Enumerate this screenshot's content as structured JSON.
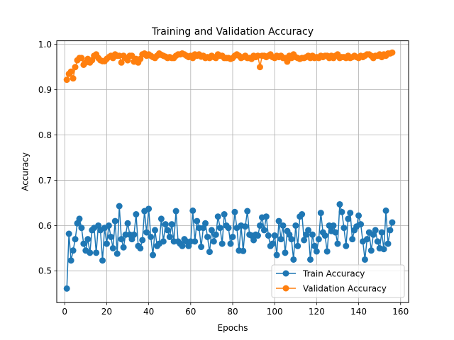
{
  "chart_data": {
    "type": "line",
    "title": "Training and Validation Accuracy",
    "xlabel": "Epochs",
    "ylabel": "Accuracy",
    "xlim": [
      -3.8,
      163.8
    ],
    "ylim": [
      0.43,
      1.008
    ],
    "xticks": [
      0,
      20,
      40,
      60,
      80,
      100,
      120,
      140,
      160
    ],
    "xtick_labels": [
      "0",
      "20",
      "40",
      "60",
      "80",
      "100",
      "120",
      "140",
      "160"
    ],
    "yticks": [
      0.5,
      0.6,
      0.7,
      0.8,
      0.9,
      1.0
    ],
    "ytick_labels": [
      "0.5",
      "0.6",
      "0.7",
      "0.8",
      "0.9",
      "1.0"
    ],
    "grid": true,
    "legend": "lower-right",
    "colors": {
      "train": "#1f77b4",
      "val": "#ff7f0e",
      "grid": "#b0b0b0",
      "legend_border": "#cccccc"
    },
    "series": [
      {
        "name": "Train Accuracy",
        "x": [
          1,
          2,
          3,
          4,
          5,
          6,
          7,
          8,
          9,
          10,
          11,
          12,
          13,
          14,
          15,
          16,
          17,
          18,
          19,
          20,
          21,
          22,
          23,
          24,
          25,
          26,
          27,
          28,
          29,
          30,
          31,
          32,
          33,
          34,
          35,
          36,
          37,
          38,
          39,
          40,
          41,
          42,
          43,
          44,
          45,
          46,
          47,
          48,
          49,
          50,
          51,
          52,
          53,
          54,
          55,
          56,
          57,
          58,
          59,
          60,
          61,
          62,
          63,
          64,
          65,
          66,
          67,
          68,
          69,
          70,
          71,
          72,
          73,
          74,
          75,
          76,
          77,
          78,
          79,
          80,
          81,
          82,
          83,
          84,
          85,
          86,
          87,
          88,
          89,
          90,
          91,
          92,
          93,
          94,
          95,
          96,
          97,
          98,
          99,
          100,
          101,
          102,
          103,
          104,
          105,
          106,
          107,
          108,
          109,
          110,
          111,
          112,
          113,
          114,
          115,
          116,
          117,
          118,
          119,
          120,
          121,
          122,
          123,
          124,
          125,
          126,
          127,
          128,
          129,
          130,
          131,
          132,
          133,
          134,
          135,
          136,
          137,
          138,
          139,
          140,
          141,
          142,
          143,
          144,
          145,
          146,
          147,
          148,
          149,
          150,
          151,
          152,
          153,
          154,
          155,
          156
        ],
        "values": [
          0.461,
          0.582,
          0.523,
          0.545,
          0.57,
          0.605,
          0.615,
          0.595,
          0.56,
          0.545,
          0.57,
          0.54,
          0.59,
          0.595,
          0.54,
          0.6,
          0.59,
          0.523,
          0.595,
          0.56,
          0.6,
          0.575,
          0.55,
          0.61,
          0.538,
          0.643,
          0.57,
          0.552,
          0.58,
          0.605,
          0.58,
          0.57,
          0.58,
          0.625,
          0.555,
          0.55,
          0.568,
          0.632,
          0.585,
          0.637,
          0.575,
          0.535,
          0.59,
          0.555,
          0.56,
          0.615,
          0.565,
          0.603,
          0.59,
          0.575,
          0.603,
          0.565,
          0.632,
          0.565,
          0.56,
          0.555,
          0.57,
          0.565,
          0.555,
          0.565,
          0.633,
          0.565,
          0.61,
          0.595,
          0.553,
          0.595,
          0.605,
          0.575,
          0.542,
          0.59,
          0.565,
          0.58,
          0.62,
          0.595,
          0.56,
          0.625,
          0.6,
          0.595,
          0.56,
          0.575,
          0.63,
          0.595,
          0.545,
          0.6,
          0.544,
          0.598,
          0.632,
          0.58,
          0.578,
          0.568,
          0.58,
          0.578,
          0.6,
          0.618,
          0.59,
          0.62,
          0.578,
          0.555,
          0.56,
          0.578,
          0.535,
          0.61,
          0.57,
          0.6,
          0.54,
          0.588,
          0.58,
          0.57,
          0.525,
          0.6,
          0.555,
          0.62,
          0.625,
          0.568,
          0.58,
          0.59,
          0.525,
          0.58,
          0.555,
          0.543,
          0.57,
          0.628,
          0.585,
          0.578,
          0.543,
          0.6,
          0.588,
          0.6,
          0.585,
          0.56,
          0.647,
          0.63,
          0.595,
          0.555,
          0.615,
          0.628,
          0.57,
          0.59,
          0.598,
          0.622,
          0.603,
          0.565,
          0.525,
          0.57,
          0.585,
          0.545,
          0.58,
          0.59,
          0.565,
          0.55,
          0.585,
          0.548,
          0.633,
          0.56,
          0.59,
          0.607
        ],
        "color": "#1f77b4"
      },
      {
        "name": "Validation Accuracy",
        "x": [
          1,
          2,
          3,
          4,
          5,
          6,
          7,
          8,
          9,
          10,
          11,
          12,
          13,
          14,
          15,
          16,
          17,
          18,
          19,
          20,
          21,
          22,
          23,
          24,
          25,
          26,
          27,
          28,
          29,
          30,
          31,
          32,
          33,
          34,
          35,
          36,
          37,
          38,
          39,
          40,
          41,
          42,
          43,
          44,
          45,
          46,
          47,
          48,
          49,
          50,
          51,
          52,
          53,
          54,
          55,
          56,
          57,
          58,
          59,
          60,
          61,
          62,
          63,
          64,
          65,
          66,
          67,
          68,
          69,
          70,
          71,
          72,
          73,
          74,
          75,
          76,
          77,
          78,
          79,
          80,
          81,
          82,
          83,
          84,
          85,
          86,
          87,
          88,
          89,
          90,
          91,
          92,
          93,
          94,
          95,
          96,
          97,
          98,
          99,
          100,
          101,
          102,
          103,
          104,
          105,
          106,
          107,
          108,
          109,
          110,
          111,
          112,
          113,
          114,
          115,
          116,
          117,
          118,
          119,
          120,
          121,
          122,
          123,
          124,
          125,
          126,
          127,
          128,
          129,
          130,
          131,
          132,
          133,
          134,
          135,
          136,
          137,
          138,
          139,
          140,
          141,
          142,
          143,
          144,
          145,
          146,
          147,
          148,
          149,
          150,
          151,
          152,
          153,
          154,
          155,
          156
        ],
        "values": [
          0.922,
          0.935,
          0.94,
          0.925,
          0.95,
          0.965,
          0.97,
          0.97,
          0.955,
          0.96,
          0.968,
          0.96,
          0.965,
          0.975,
          0.978,
          0.97,
          0.965,
          0.963,
          0.963,
          0.968,
          0.972,
          0.975,
          0.97,
          0.978,
          0.975,
          0.975,
          0.96,
          0.975,
          0.97,
          0.965,
          0.975,
          0.975,
          0.962,
          0.968,
          0.96,
          0.968,
          0.978,
          0.98,
          0.975,
          0.978,
          0.975,
          0.972,
          0.97,
          0.975,
          0.98,
          0.977,
          0.975,
          0.973,
          0.97,
          0.972,
          0.97,
          0.97,
          0.975,
          0.978,
          0.978,
          0.98,
          0.978,
          0.975,
          0.972,
          0.975,
          0.97,
          0.978,
          0.975,
          0.978,
          0.973,
          0.975,
          0.97,
          0.972,
          0.97,
          0.975,
          0.972,
          0.97,
          0.978,
          0.975,
          0.975,
          0.97,
          0.97,
          0.97,
          0.968,
          0.97,
          0.975,
          0.978,
          0.975,
          0.97,
          0.972,
          0.975,
          0.97,
          0.97,
          0.968,
          0.975,
          0.972,
          0.975,
          0.95,
          0.975,
          0.975,
          0.972,
          0.975,
          0.978,
          0.972,
          0.97,
          0.975,
          0.972,
          0.975,
          0.97,
          0.97,
          0.962,
          0.975,
          0.97,
          0.978,
          0.972,
          0.97,
          0.968,
          0.97,
          0.97,
          0.972,
          0.975,
          0.97,
          0.975,
          0.97,
          0.972,
          0.97,
          0.975,
          0.972,
          0.975,
          0.975,
          0.97,
          0.975,
          0.97,
          0.975,
          0.978,
          0.97,
          0.972,
          0.972,
          0.97,
          0.975,
          0.97,
          0.972,
          0.975,
          0.972,
          0.97,
          0.975,
          0.972,
          0.975,
          0.978,
          0.978,
          0.975,
          0.97,
          0.975,
          0.975,
          0.978,
          0.972,
          0.978,
          0.975,
          0.98,
          0.98,
          0.982
        ],
        "color": "#ff7f0e"
      }
    ]
  }
}
